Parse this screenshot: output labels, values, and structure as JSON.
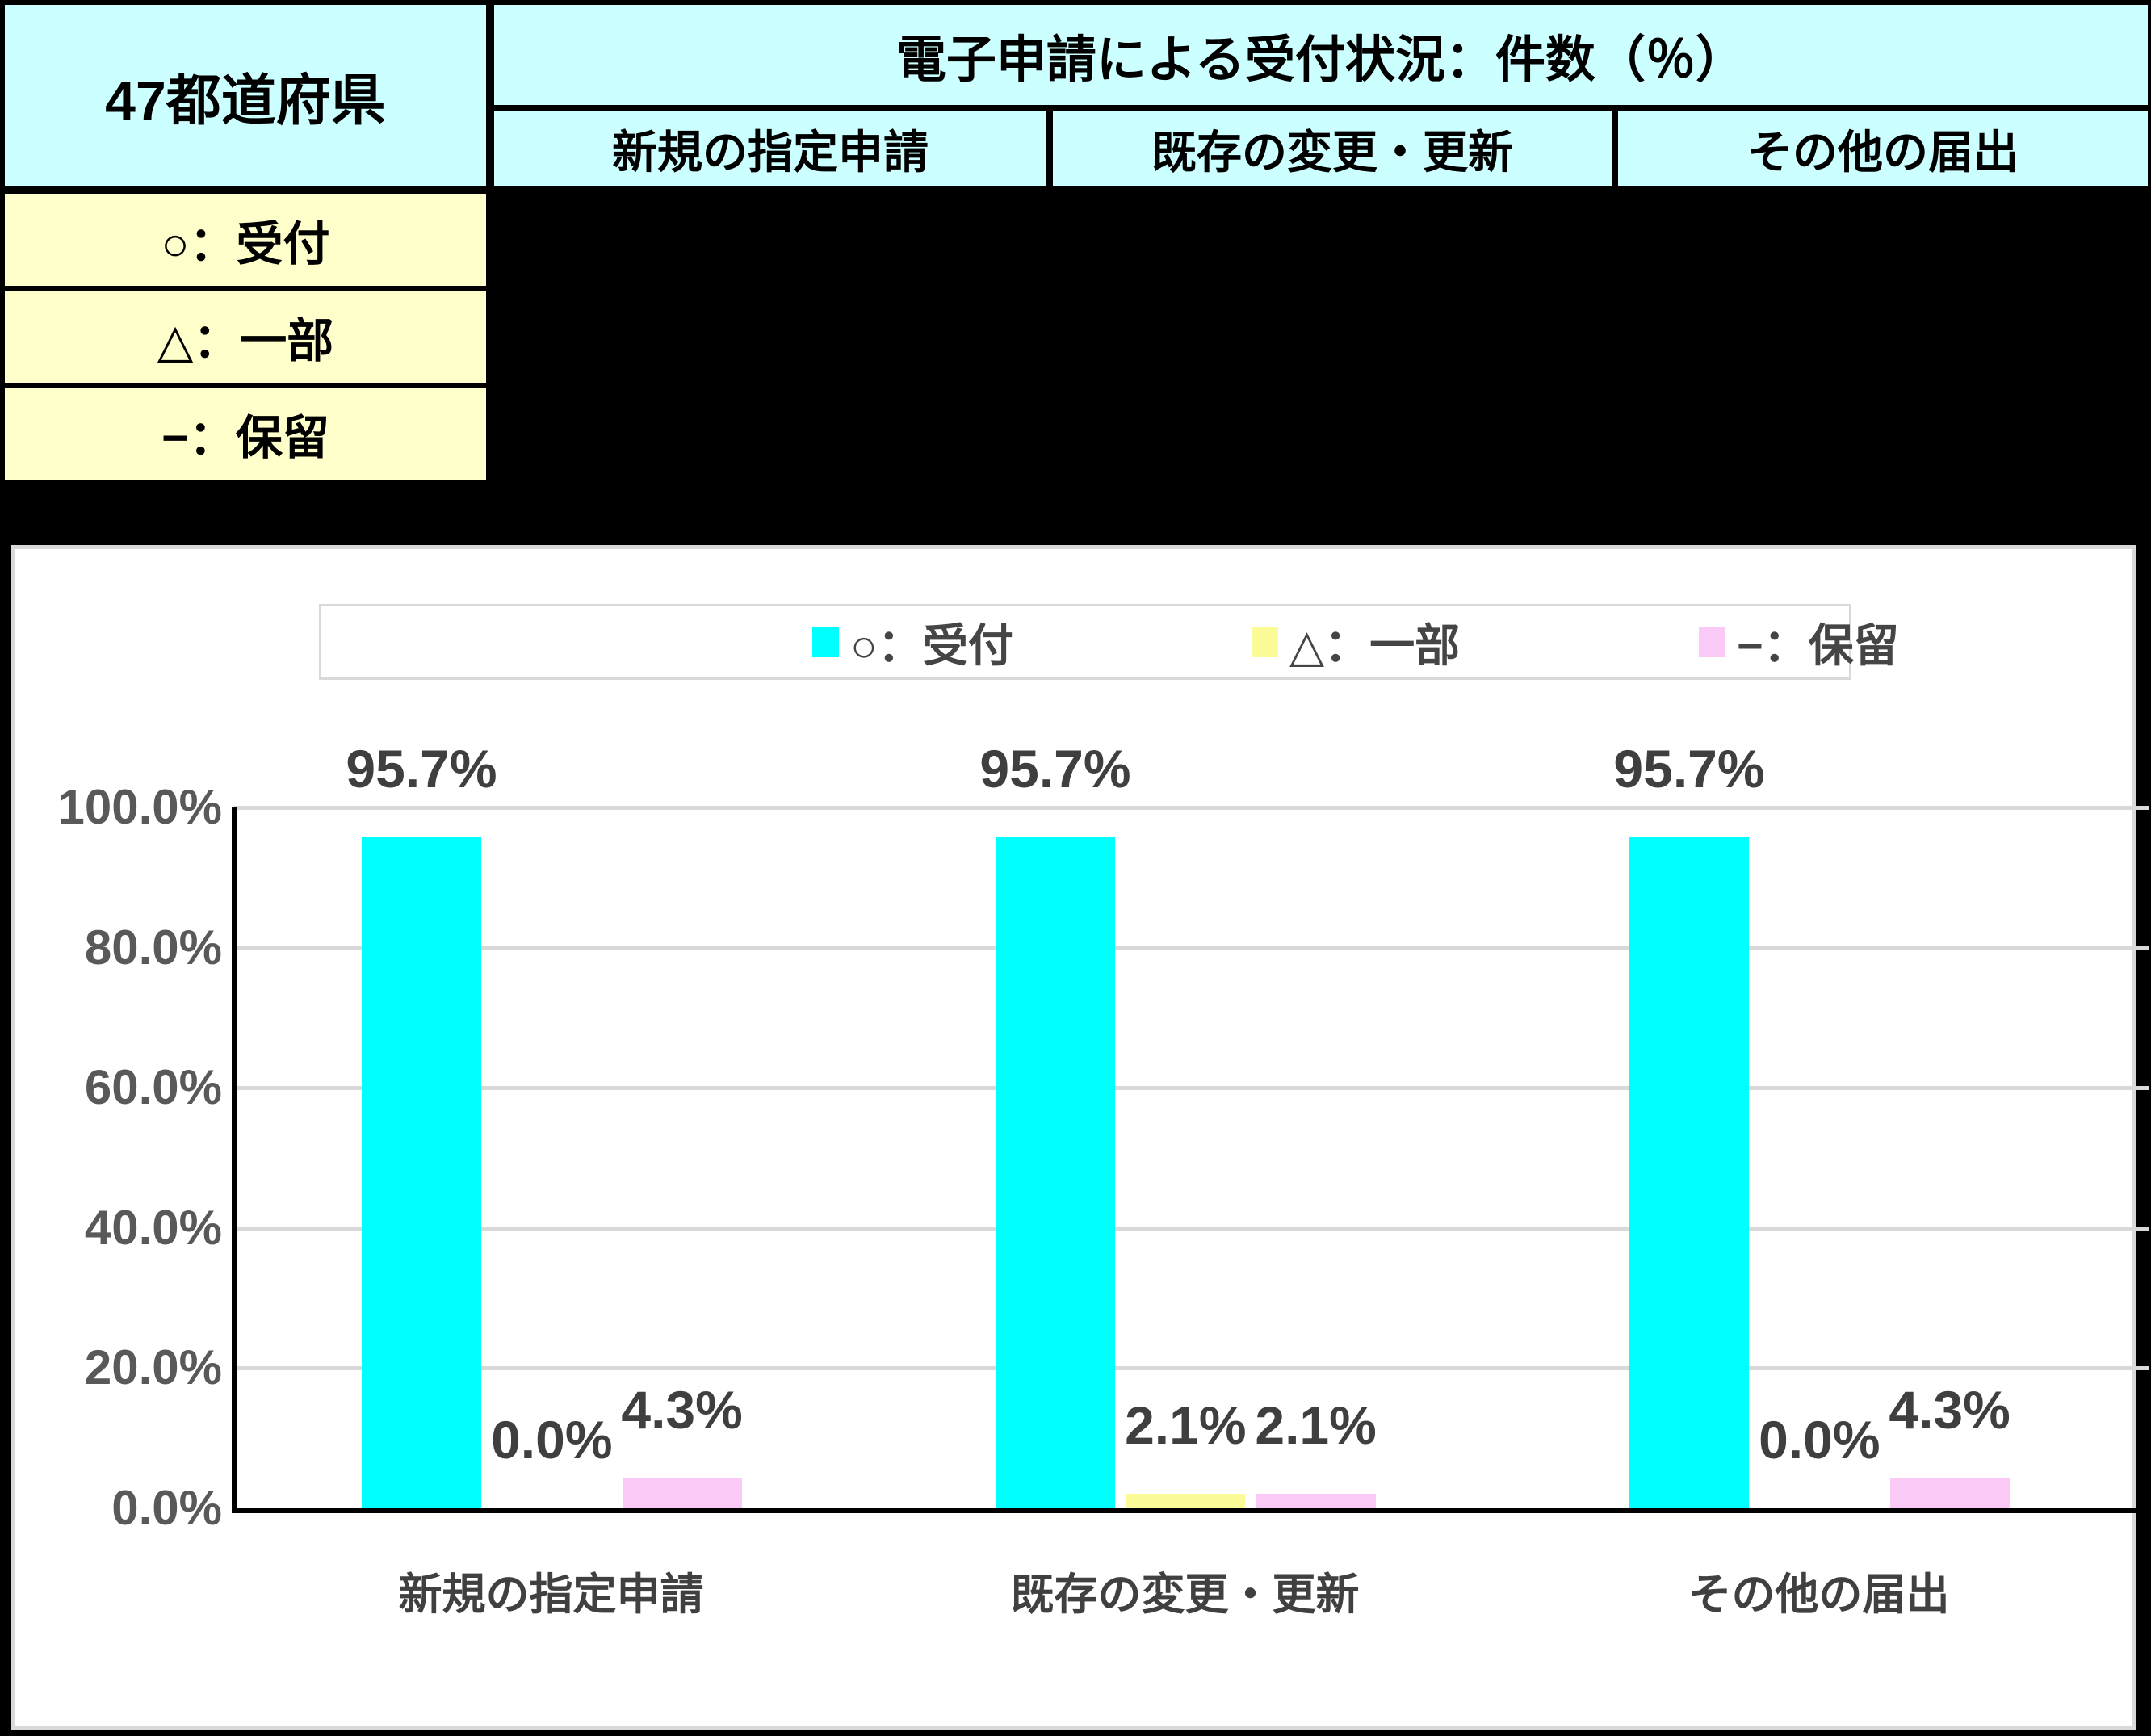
{
  "window": {
    "background": "#000000"
  },
  "table": {
    "row_header": "47都道府県",
    "group_header": "電子申請による受付状況：件数（％）",
    "columns": [
      "新規の指定申請",
      "既存の変更・更新",
      "その他の届出"
    ],
    "status_legend": [
      "○：受付",
      "△：一部",
      "−：保留"
    ],
    "colors": {
      "header_bg": "#CCFFFF",
      "status_bg": "#FFFFCC",
      "text": "#000000"
    }
  },
  "chart_data": {
    "type": "bar",
    "title": "",
    "categories": [
      "新規の指定申請",
      "既存の変更・更新",
      "その他の届出"
    ],
    "series": [
      {
        "name": "○：受付",
        "color": "#00FFFF",
        "values": [
          95.7,
          95.7,
          95.7
        ]
      },
      {
        "name": "△：一部",
        "color": "#FBFB98",
        "values": [
          0.0,
          2.1,
          0.0
        ]
      },
      {
        "name": "−：保留",
        "color": "#FBC9F5",
        "values": [
          4.3,
          2.1,
          4.3
        ]
      }
    ],
    "value_labels": [
      [
        "95.7%",
        "0.0%",
        "4.3%"
      ],
      [
        "95.7%",
        "2.1%",
        "2.1%"
      ],
      [
        "95.7%",
        "0.0%",
        "4.3%"
      ]
    ],
    "ylim": [
      0,
      100
    ],
    "yticks": [
      {
        "value": 100,
        "label": "100.0%"
      },
      {
        "value": 80,
        "label": "80.0%"
      },
      {
        "value": 60,
        "label": "60.0%"
      },
      {
        "value": 40,
        "label": "40.0%"
      },
      {
        "value": 20,
        "label": "20.0%"
      },
      {
        "value": 0,
        "label": "0.0%"
      }
    ],
    "grid": true,
    "legend_position": "top",
    "axis_color": "#000000",
    "grid_color": "#D9D9D9",
    "tick_color": "#595959",
    "label_color": "#3F3F3F"
  }
}
